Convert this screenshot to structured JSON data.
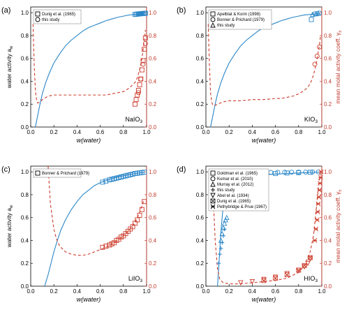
{
  "colors": {
    "activity": "#2a86c8",
    "gamma": "#cc3a2a",
    "axis": "#000000",
    "right_axis": "#c0392b"
  },
  "axis_labels": {
    "x": "w(water)",
    "y_left": "water activity a",
    "y_left_sub": "w",
    "y_right": "mean molal activity coeff. γ",
    "y_right_sub": "±"
  },
  "ticks": {
    "x": [
      "0.0",
      "0.2",
      "0.4",
      "0.6",
      "0.8",
      "1.0"
    ],
    "y": [
      "0.0",
      "0.2",
      "0.4",
      "0.6",
      "0.8",
      "1.0"
    ]
  },
  "chart_data": [
    {
      "panel": "(a)",
      "compound": "NaIO",
      "compound_sub": "3",
      "type": "scatter",
      "xlim": [
        0,
        1
      ],
      "ylim": [
        0,
        1.05
      ],
      "y2lim": [
        0,
        1.05
      ],
      "legend": [
        {
          "label": "Durig et al. (1965)",
          "marker": "square"
        },
        {
          "label": "this study",
          "marker": "circle"
        }
      ],
      "activity_curve": {
        "x": [
          0.04,
          0.06,
          0.08,
          0.1,
          0.13,
          0.16,
          0.2,
          0.25,
          0.3,
          0.35,
          0.4,
          0.45,
          0.5,
          0.55,
          0.6,
          0.65,
          0.7,
          0.75,
          0.8,
          0.85,
          0.9,
          0.95,
          0.98
        ],
        "y": [
          0.0,
          0.1,
          0.2,
          0.29,
          0.39,
          0.47,
          0.56,
          0.64,
          0.71,
          0.76,
          0.8,
          0.84,
          0.87,
          0.89,
          0.91,
          0.93,
          0.945,
          0.96,
          0.97,
          0.98,
          0.985,
          0.99,
          0.995
        ]
      },
      "gamma_curve": {
        "x": [
          0.02,
          0.03,
          0.04,
          0.05,
          0.06,
          0.08,
          0.1,
          0.15,
          0.2,
          0.3,
          0.4,
          0.5,
          0.6,
          0.65,
          0.7,
          0.75,
          0.8,
          0.85,
          0.88,
          0.9,
          0.92,
          0.94,
          0.96,
          0.98,
          0.99
        ],
        "y": [
          0.9,
          0.55,
          0.32,
          0.24,
          0.21,
          0.22,
          0.24,
          0.27,
          0.28,
          0.28,
          0.28,
          0.28,
          0.28,
          0.28,
          0.29,
          0.3,
          0.31,
          0.34,
          0.37,
          0.39,
          0.43,
          0.5,
          0.6,
          0.75,
          0.85
        ]
      },
      "series": [
        {
          "name": "Durig et al. (1965)",
          "marker": "square",
          "axis": "left",
          "color": "blue",
          "x": [
            0.9,
            0.91,
            0.92,
            0.93,
            0.94,
            0.95,
            0.96,
            0.97,
            0.98,
            0.99
          ],
          "y": [
            0.985,
            0.986,
            0.988,
            0.989,
            0.99,
            0.991,
            0.992,
            0.993,
            0.994,
            0.995
          ]
        },
        {
          "name": "this study",
          "marker": "circle",
          "axis": "left",
          "color": "blue",
          "x": [
            0.93,
            0.95,
            0.97,
            0.99
          ],
          "y": [
            0.99,
            0.992,
            0.994,
            0.996
          ]
        },
        {
          "name": "Durig et al. (1965)",
          "marker": "square",
          "axis": "right",
          "color": "red",
          "x": [
            0.9,
            0.91,
            0.92,
            0.93,
            0.94,
            0.95,
            0.96,
            0.97,
            0.98,
            0.99
          ],
          "y": [
            0.2,
            0.24,
            0.28,
            0.32,
            0.37,
            0.42,
            0.5,
            0.58,
            0.68,
            0.78
          ]
        },
        {
          "name": "this study",
          "marker": "circle",
          "axis": "right",
          "color": "red",
          "x": [
            0.93,
            0.95,
            0.97,
            0.99
          ],
          "y": [
            0.3,
            0.42,
            0.55,
            0.73
          ]
        }
      ]
    },
    {
      "panel": "(b)",
      "compound": "KIO",
      "compound_sub": "3",
      "type": "scatter",
      "xlim": [
        0,
        1
      ],
      "ylim": [
        0,
        1.05
      ],
      "y2lim": [
        0,
        1.05
      ],
      "legend": [
        {
          "label": "Apelblat & Korin (1998)",
          "marker": "square"
        },
        {
          "label": "Bonner & Prichard (1979)",
          "marker": "circle"
        },
        {
          "label": "this study",
          "marker": "triangle"
        }
      ],
      "activity_curve": {
        "x": [
          0.04,
          0.06,
          0.08,
          0.1,
          0.13,
          0.16,
          0.2,
          0.25,
          0.3,
          0.35,
          0.4,
          0.45,
          0.5,
          0.55,
          0.6,
          0.65,
          0.7,
          0.75,
          0.8,
          0.85,
          0.9,
          0.95,
          0.98
        ],
        "y": [
          0.0,
          0.1,
          0.2,
          0.29,
          0.39,
          0.47,
          0.56,
          0.64,
          0.71,
          0.76,
          0.8,
          0.84,
          0.87,
          0.89,
          0.91,
          0.93,
          0.945,
          0.96,
          0.97,
          0.98,
          0.985,
          0.99,
          0.995
        ]
      },
      "gamma_curve": {
        "x": [
          0.02,
          0.03,
          0.04,
          0.05,
          0.06,
          0.08,
          0.1,
          0.15,
          0.2,
          0.3,
          0.4,
          0.5,
          0.6,
          0.65,
          0.7,
          0.75,
          0.8,
          0.85,
          0.88,
          0.9,
          0.92,
          0.94,
          0.96,
          0.98,
          0.99
        ],
        "y": [
          0.9,
          0.55,
          0.3,
          0.22,
          0.19,
          0.19,
          0.2,
          0.22,
          0.23,
          0.23,
          0.24,
          0.24,
          0.25,
          0.25,
          0.26,
          0.27,
          0.29,
          0.32,
          0.35,
          0.38,
          0.43,
          0.5,
          0.6,
          0.72,
          0.8
        ]
      },
      "series": [
        {
          "name": "Apelblat & Korin (1998)",
          "marker": "square",
          "axis": "left",
          "color": "blue",
          "x": [
            0.91
          ],
          "y": [
            0.94
          ]
        },
        {
          "name": "Bonner & Prichard (1979)",
          "marker": "circle",
          "axis": "left",
          "color": "blue",
          "x": [
            0.94,
            0.96,
            0.98
          ],
          "y": [
            0.99,
            0.993,
            0.996
          ]
        },
        {
          "name": "this study",
          "marker": "triangle",
          "axis": "left",
          "color": "blue",
          "x": [
            0.92,
            0.95,
            0.97
          ],
          "y": [
            0.985,
            0.99,
            0.995
          ]
        },
        {
          "name": "Bonner & Prichard (1979)",
          "marker": "circle",
          "axis": "right",
          "color": "red",
          "x": [
            0.94,
            0.96,
            0.98
          ],
          "y": [
            0.55,
            0.62,
            0.7
          ]
        }
      ]
    },
    {
      "panel": "(c)",
      "compound": "LiIO",
      "compound_sub": "3",
      "type": "scatter",
      "xlim": [
        0,
        1
      ],
      "ylim": [
        0,
        1.05
      ],
      "y2lim": [
        0,
        1.05
      ],
      "legend": [
        {
          "label": "Bonner & Prichard (1979)",
          "marker": "square"
        }
      ],
      "activity_curve": {
        "x": [
          0.12,
          0.15,
          0.18,
          0.2,
          0.23,
          0.26,
          0.3,
          0.35,
          0.4,
          0.45,
          0.5,
          0.55,
          0.6,
          0.65,
          0.7,
          0.75,
          0.8,
          0.85,
          0.9,
          0.95,
          0.98
        ],
        "y": [
          0.0,
          0.1,
          0.22,
          0.3,
          0.4,
          0.49,
          0.58,
          0.67,
          0.74,
          0.8,
          0.84,
          0.88,
          0.905,
          0.925,
          0.94,
          0.955,
          0.965,
          0.975,
          0.985,
          0.993,
          0.997
        ]
      },
      "gamma_curve": {
        "x": [
          0.15,
          0.17,
          0.2,
          0.22,
          0.25,
          0.3,
          0.35,
          0.4,
          0.45,
          0.5,
          0.55,
          0.6,
          0.65,
          0.7,
          0.75,
          0.8,
          0.85,
          0.9,
          0.93,
          0.96,
          0.98
        ],
        "y": [
          1.05,
          0.72,
          0.5,
          0.42,
          0.35,
          0.3,
          0.28,
          0.27,
          0.27,
          0.28,
          0.3,
          0.32,
          0.34,
          0.37,
          0.4,
          0.44,
          0.49,
          0.56,
          0.62,
          0.7,
          0.76
        ]
      },
      "series": [
        {
          "name": "Bonner & Prichard (1979)",
          "marker": "square",
          "axis": "left",
          "color": "blue",
          "x": [
            0.62,
            0.65,
            0.68,
            0.7,
            0.72,
            0.74,
            0.76,
            0.78,
            0.8,
            0.82,
            0.84,
            0.86,
            0.88,
            0.9,
            0.92,
            0.94,
            0.96,
            0.98
          ],
          "y": [
            0.91,
            0.92,
            0.93,
            0.935,
            0.94,
            0.945,
            0.95,
            0.955,
            0.96,
            0.965,
            0.97,
            0.975,
            0.98,
            0.985,
            0.988,
            0.991,
            0.994,
            0.997
          ]
        },
        {
          "name": "Bonner & Prichard (1979)",
          "marker": "square",
          "axis": "right",
          "color": "red",
          "x": [
            0.62,
            0.65,
            0.68,
            0.7,
            0.72,
            0.74,
            0.76,
            0.78,
            0.8,
            0.82,
            0.84,
            0.86,
            0.88,
            0.9,
            0.92,
            0.94,
            0.96,
            0.98
          ],
          "y": [
            0.34,
            0.35,
            0.36,
            0.37,
            0.38,
            0.4,
            0.41,
            0.43,
            0.44,
            0.46,
            0.48,
            0.5,
            0.52,
            0.55,
            0.58,
            0.62,
            0.67,
            0.74
          ]
        }
      ]
    },
    {
      "panel": "(d)",
      "compound": "HIO",
      "compound_sub": "3",
      "type": "scatter",
      "xlim": [
        0,
        1
      ],
      "ylim": [
        0,
        1.05
      ],
      "y2lim": [
        0,
        1.05
      ],
      "legend": [
        {
          "label": "Goldman et al. (1965)",
          "marker": "square"
        },
        {
          "label": "Kumar et al. (2010)",
          "marker": "circle"
        },
        {
          "label": "Murray et al. (2012)",
          "marker": "triangle"
        },
        {
          "label": "this study",
          "marker": "plus"
        },
        {
          "label": "Abel et al. (1934)",
          "marker": "triangle-down"
        },
        {
          "label": "Durig et al. (1965)",
          "marker": "square-cross"
        },
        {
          "label": "Pethybridge & Prue (1967)",
          "marker": "star"
        }
      ],
      "activity_curve": {
        "x": [
          0.1,
          0.11,
          0.12,
          0.13,
          0.14,
          0.15,
          0.16,
          0.17,
          0.18,
          0.19,
          0.2,
          0.22,
          0.25,
          0.3,
          0.35,
          0.4,
          0.5,
          0.6,
          0.7,
          0.8,
          0.9,
          0.98
        ],
        "y": [
          0.0,
          0.15,
          0.32,
          0.48,
          0.6,
          0.7,
          0.77,
          0.82,
          0.86,
          0.89,
          0.91,
          0.93,
          0.95,
          0.96,
          0.965,
          0.97,
          0.975,
          0.98,
          0.985,
          0.99,
          0.995,
          0.998
        ]
      },
      "gamma_curve": {
        "x": [
          0.06,
          0.08,
          0.1,
          0.12,
          0.15,
          0.2,
          0.3,
          0.4,
          0.5,
          0.6,
          0.7,
          0.8,
          0.85,
          0.9,
          0.93,
          0.95,
          0.97,
          0.99
        ],
        "y": [
          0.85,
          0.4,
          0.15,
          0.06,
          0.03,
          0.02,
          0.02,
          0.03,
          0.04,
          0.05,
          0.07,
          0.12,
          0.18,
          0.3,
          0.45,
          0.65,
          0.85,
          1.0
        ]
      },
      "series": [
        {
          "name": "Goldman et al. (1965)",
          "marker": "square",
          "axis": "left",
          "color": "blue",
          "x": [
            0.3,
            0.4,
            0.5,
            0.6,
            0.7,
            0.8,
            0.9
          ],
          "y": [
            0.97,
            0.975,
            0.98,
            0.985,
            0.99,
            0.993,
            0.996
          ]
        },
        {
          "name": "Kumar et al. (2010)",
          "marker": "circle",
          "axis": "left",
          "color": "blue",
          "x": [
            0.2,
            0.26,
            0.32,
            0.38,
            0.44,
            0.5,
            0.56,
            0.62,
            0.68,
            0.74,
            0.8,
            0.86,
            0.92,
            0.97
          ],
          "y": [
            0.98,
            0.985,
            0.99,
            0.99,
            0.995,
            0.995,
            0.995,
            0.996,
            0.997,
            0.997,
            0.998,
            0.998,
            0.999,
            0.999
          ]
        },
        {
          "name": "Murray et al. (2012)",
          "marker": "triangle",
          "axis": "left",
          "color": "blue",
          "x": [
            0.13,
            0.14,
            0.15,
            0.16,
            0.17,
            0.18
          ],
          "y": [
            0.4,
            0.46,
            0.51,
            0.55,
            0.58,
            0.6
          ]
        },
        {
          "name": "this study",
          "marker": "plus",
          "axis": "left",
          "color": "blue",
          "x": [
            0.11,
            0.12,
            0.13,
            0.14,
            0.15,
            0.16
          ],
          "y": [
            0.2,
            0.28,
            0.33,
            0.38,
            0.44,
            0.5
          ]
        },
        {
          "name": "Abel et al. (1934)",
          "marker": "triangle-down",
          "axis": "right",
          "color": "red",
          "x": [
            0.3,
            0.4,
            0.5,
            0.6,
            0.7,
            0.8,
            0.85,
            0.88,
            0.9
          ],
          "y": [
            0.03,
            0.04,
            0.06,
            0.08,
            0.11,
            0.14,
            0.17,
            0.2,
            0.24
          ]
        },
        {
          "name": "Durig et al. (1965)",
          "marker": "square-cross",
          "axis": "right",
          "color": "red",
          "x": [
            0.5,
            0.6,
            0.7,
            0.8,
            0.85,
            0.9
          ],
          "y": [
            0.05,
            0.07,
            0.1,
            0.14,
            0.18,
            0.25
          ]
        },
        {
          "name": "Pethybridge & Prue (1967)",
          "marker": "star",
          "axis": "right",
          "color": "red",
          "x": [
            0.94,
            0.95,
            0.96,
            0.965,
            0.97,
            0.975,
            0.98,
            0.985,
            0.99,
            0.995
          ],
          "y": [
            0.4,
            0.5,
            0.58,
            0.65,
            0.72,
            0.78,
            0.84,
            0.9,
            0.95,
            1.0
          ]
        }
      ]
    }
  ]
}
